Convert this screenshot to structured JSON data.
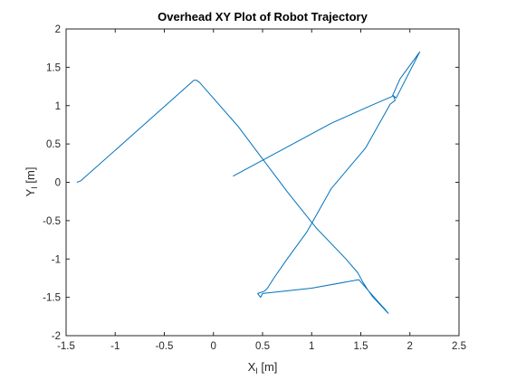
{
  "chart_data": {
    "type": "line",
    "title": "Overhead XY Plot of Robot Trajectory",
    "xlabel": {
      "main": "X",
      "sub": "I",
      "unit": " [m]"
    },
    "ylabel": {
      "main": "Y",
      "sub": "I",
      "unit": " [m]"
    },
    "xlim": [
      -1.5,
      2.5
    ],
    "ylim": [
      -2,
      2
    ],
    "xticks": [
      -1.5,
      -1,
      -0.5,
      0,
      0.5,
      1,
      1.5,
      2,
      2.5
    ],
    "yticks": [
      -2,
      -1.5,
      -1,
      -0.5,
      0,
      0.5,
      1,
      1.5,
      2
    ],
    "xtick_labels": [
      "-1.5",
      "-1",
      "-0.5",
      "0",
      "0.5",
      "1",
      "1.5",
      "2",
      "2.5"
    ],
    "ytick_labels": [
      "-2",
      "-1.5",
      "-1",
      "-0.5",
      "0",
      "0.5",
      "1",
      "1.5",
      "2"
    ],
    "grid": false,
    "line_color": "#0072BD",
    "series": [
      {
        "x": [
          -1.39,
          -1.35,
          -0.2,
          -0.17,
          -0.14,
          0.25,
          0.75,
          1.05,
          1.35,
          1.47,
          1.52,
          1.57,
          1.62,
          1.78,
          1.75,
          1.65,
          1.48,
          1.0,
          0.5,
          0.48,
          0.45,
          0.52,
          0.55,
          0.62,
          0.75,
          0.95,
          1.2,
          1.55,
          1.8,
          1.85,
          1.83,
          1.86,
          2.1,
          1.9,
          1.82,
          1.6,
          1.2,
          0.2
        ],
        "y": [
          0.0,
          0.02,
          1.33,
          1.33,
          1.3,
          0.73,
          -0.12,
          -0.6,
          -1.0,
          -1.18,
          -1.3,
          -1.4,
          -1.49,
          -1.71,
          -1.66,
          -1.52,
          -1.27,
          -1.38,
          -1.45,
          -1.5,
          -1.45,
          -1.42,
          -1.38,
          -1.24,
          -1.0,
          -0.65,
          -0.08,
          0.45,
          1.02,
          1.07,
          1.13,
          1.1,
          1.7,
          1.35,
          1.12,
          1.0,
          0.77,
          0.08
        ]
      }
    ]
  }
}
